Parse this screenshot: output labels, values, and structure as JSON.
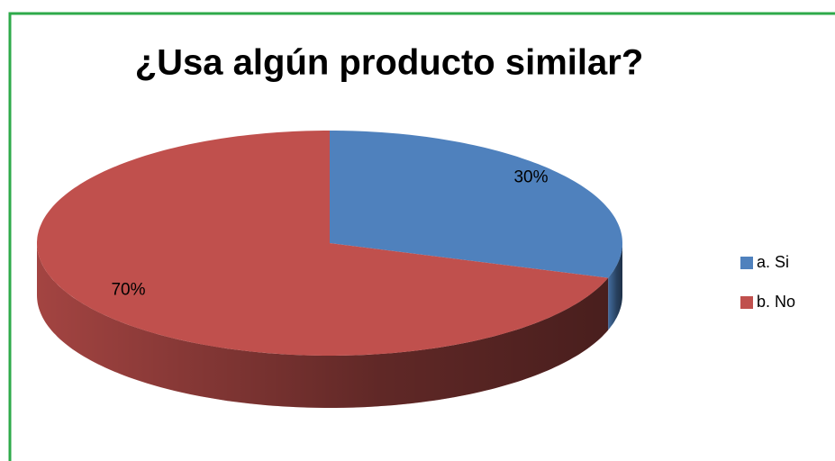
{
  "chart_data": {
    "type": "pie",
    "title": "¿Usa algún producto similar?",
    "categories": [
      "a. Si",
      "b. No"
    ],
    "values": [
      30,
      70
    ],
    "value_labels": [
      "30%",
      "70%"
    ],
    "colors": [
      "#4f81bd",
      "#c0504d"
    ],
    "legend": "right"
  }
}
